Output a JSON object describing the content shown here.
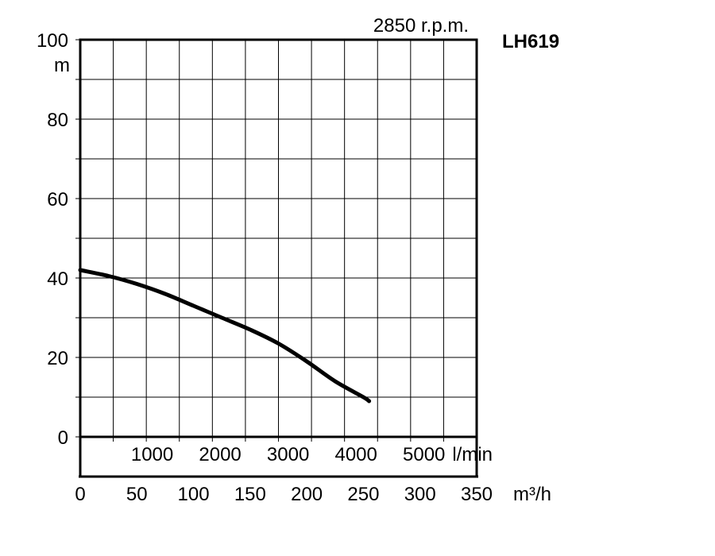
{
  "chart_data": {
    "type": "line",
    "title": "LH619",
    "speed_label": "2850 r.p.m.",
    "y_axis": {
      "unit": "m",
      "ylim": [
        0,
        100
      ],
      "ticks": [
        "0",
        "20",
        "40",
        "60",
        "80",
        "100"
      ]
    },
    "x_axis_lmin": {
      "unit": "l/min",
      "ticks": [
        "1000",
        "2000",
        "3000",
        "4000",
        "5000"
      ]
    },
    "x_axis_m3h": {
      "unit": "m³/h",
      "xlim": [
        0,
        350
      ],
      "ticks": [
        "0",
        "50",
        "100",
        "150",
        "200",
        "250",
        "300",
        "350"
      ]
    },
    "grid": true,
    "series": [
      {
        "x": [
          0,
          25,
          50,
          75,
          100,
          125,
          150,
          175,
          200,
          225,
          250,
          255
        ],
        "y": [
          42,
          40.5,
          38.5,
          36,
          33,
          30,
          27,
          23.5,
          19,
          14,
          10,
          9
        ]
      }
    ]
  }
}
